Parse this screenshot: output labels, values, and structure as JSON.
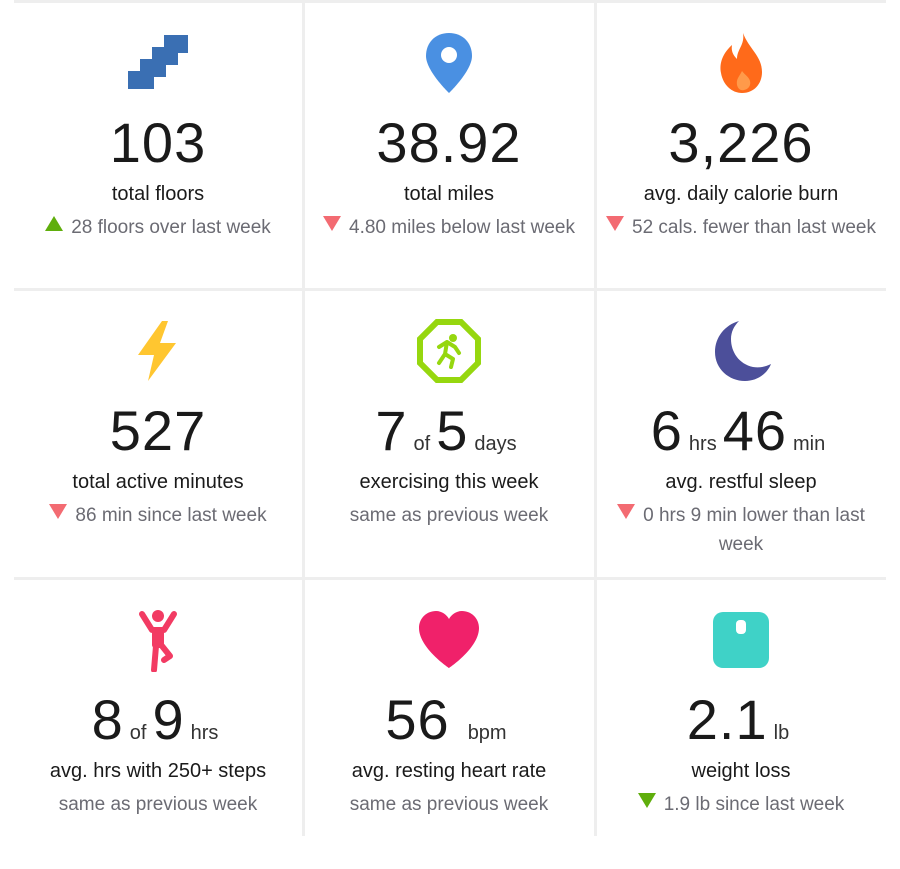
{
  "tiles": [
    {
      "icon": "stairs-icon",
      "value": "103",
      "label": "total floors",
      "trend": "up",
      "sub": "28 floors over last week"
    },
    {
      "icon": "map-pin-icon",
      "value": "38.92",
      "label": "total miles",
      "trend": "down",
      "sub": "4.80 miles below last week"
    },
    {
      "icon": "flame-icon",
      "value": "3,226",
      "label": "avg. daily calorie burn",
      "trend": "down",
      "sub": "52 cals. fewer than last week"
    },
    {
      "icon": "lightning-icon",
      "value": "527",
      "label": "total active minutes",
      "trend": "down",
      "sub": "86 min since last week"
    },
    {
      "icon": "exercise-badge-icon",
      "value_a": "7",
      "unit_a": "of",
      "value_b": "5",
      "unit_b": "days",
      "label": "exercising this week",
      "trend": "none",
      "sub": "same as previous week"
    },
    {
      "icon": "moon-icon",
      "value_a": "6",
      "unit_a": "hrs",
      "value_b": "46",
      "unit_b": "min",
      "label": "avg. restful sleep",
      "trend": "down",
      "sub": "0 hrs 9 min lower than last week"
    },
    {
      "icon": "standing-person-icon",
      "value_a": "8",
      "unit_a": "of",
      "value_b": "9",
      "unit_b": "hrs",
      "label": "avg. hrs with 250+ steps",
      "trend": "none",
      "sub": "same as previous week"
    },
    {
      "icon": "heart-icon",
      "value_a": "56",
      "unit_a": "bpm",
      "label": "avg. resting heart rate",
      "trend": "none",
      "sub": "same as previous week"
    },
    {
      "icon": "scale-icon",
      "value_a": "2.1",
      "unit_a": "lb",
      "label": "weight loss",
      "trend": "down-good",
      "sub": "1.9 lb since last week"
    }
  ],
  "colors": {
    "up": "#5fae0c",
    "down": "#f36b72",
    "stairs": "#3a6fb3",
    "pin": "#4a90e2",
    "flame": "#ff6a1a",
    "lightning": "#ffc630",
    "exercise": "#96d70f",
    "moon": "#4c4f9a",
    "person": "#f23b63",
    "heart": "#f0216a",
    "scale": "#3fd2c7"
  }
}
